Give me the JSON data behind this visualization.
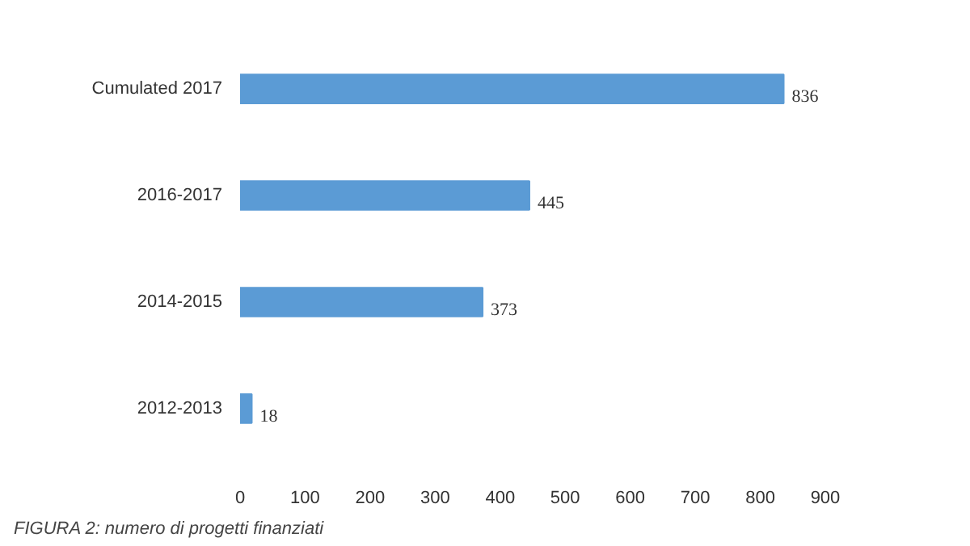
{
  "chart_data": {
    "type": "bar",
    "orientation": "horizontal",
    "categories": [
      "Cumulated 2017",
      "2016-2017",
      "2014-2015",
      "2012-2013"
    ],
    "values": [
      836,
      445,
      373,
      18
    ],
    "color": "#5b9bd5",
    "xlim": [
      0,
      900
    ],
    "xticks": [
      0,
      100,
      200,
      300,
      400,
      500,
      600,
      700,
      800,
      900
    ],
    "grid": false,
    "data_labels": true,
    "annotations": [
      "FIGURA 2: numero di progetti finanziati"
    ]
  }
}
